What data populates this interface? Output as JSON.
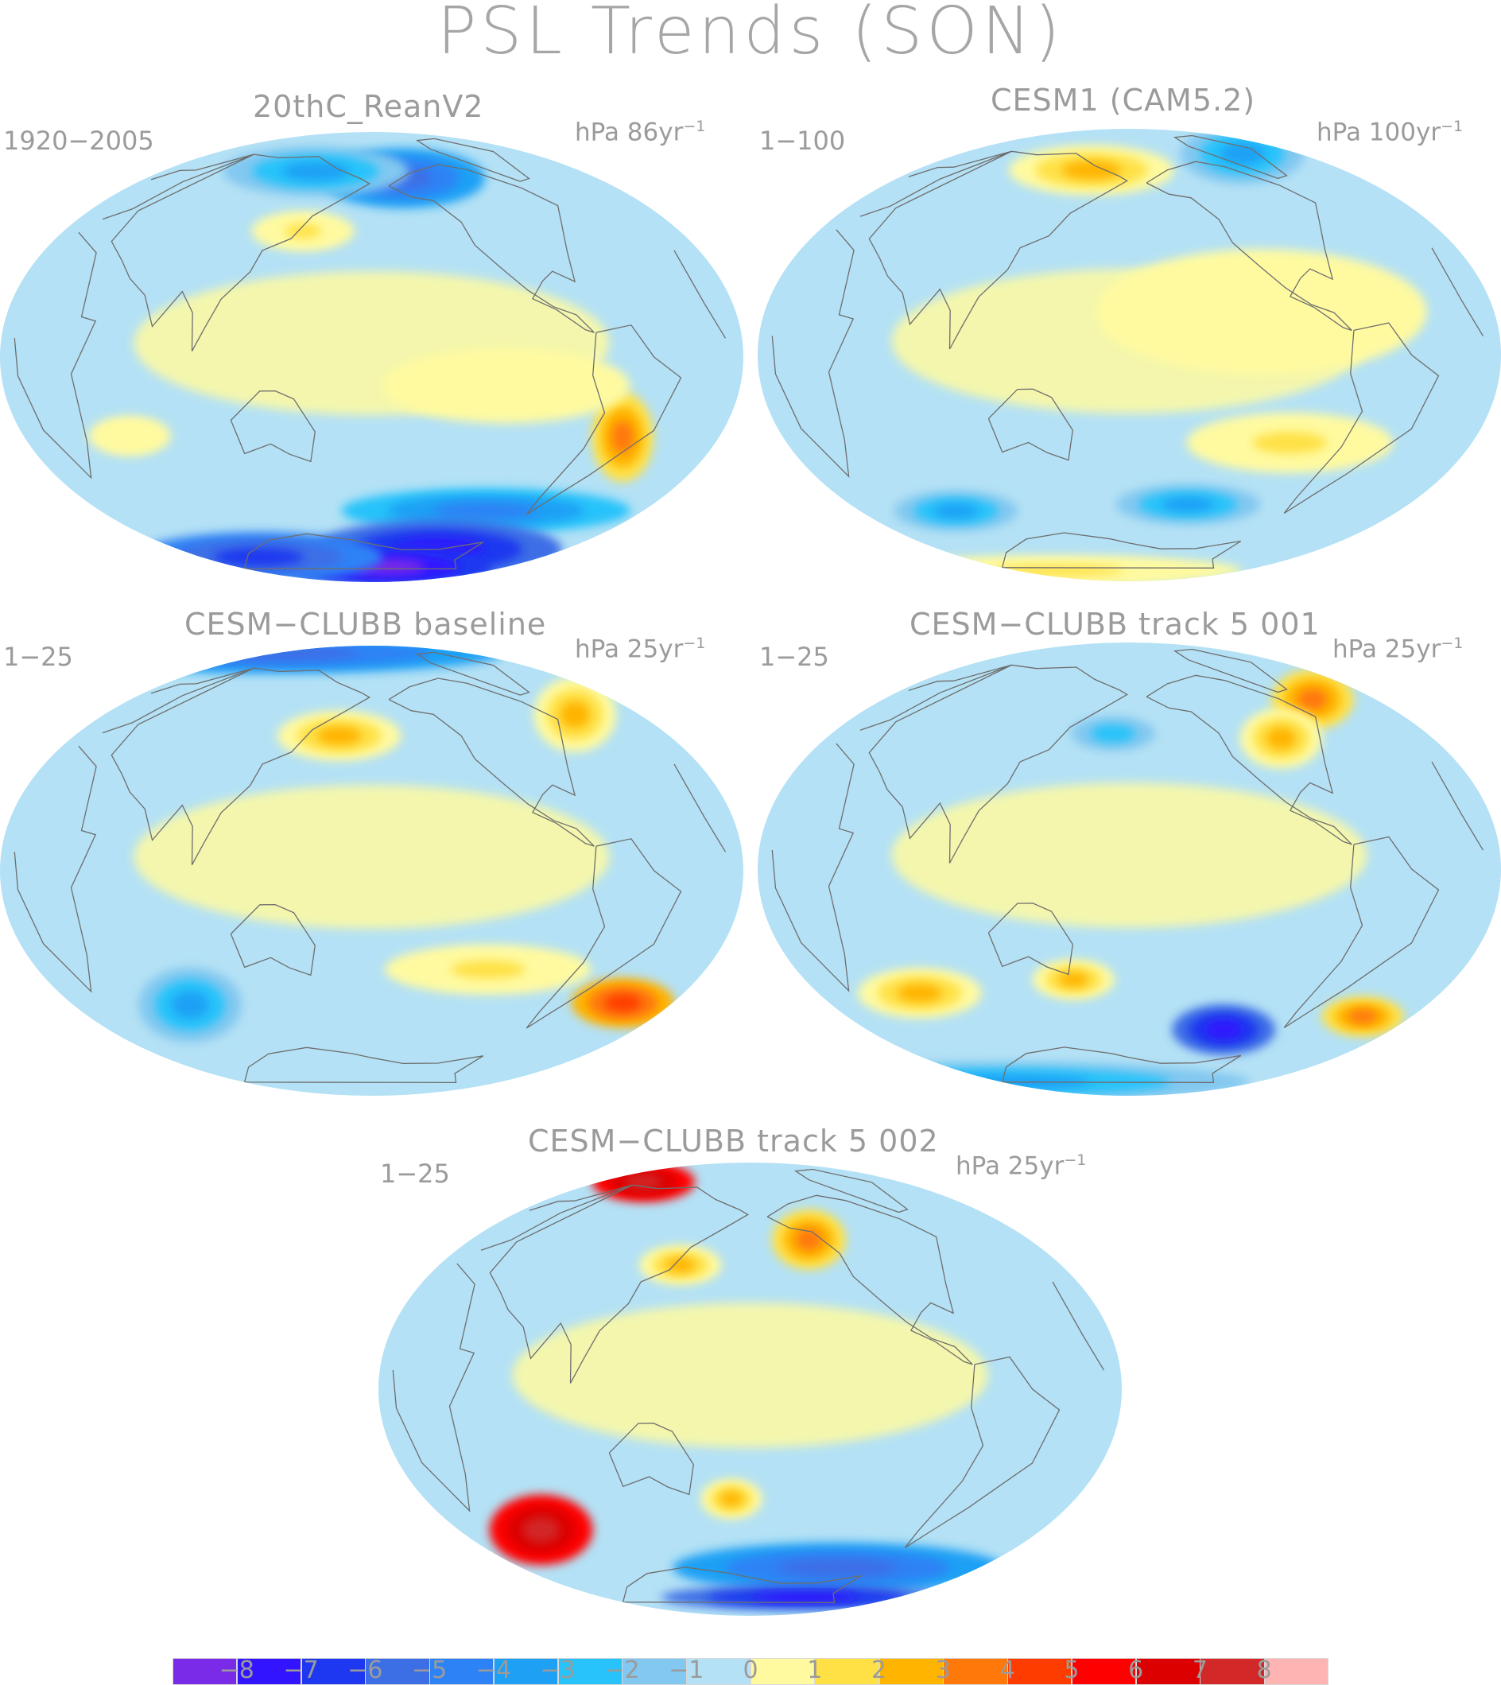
{
  "figure": {
    "title": "PSL Trends (SON)"
  },
  "colors": {
    "levels": [
      "#7a2be8",
      "#3214ff",
      "#1e37f0",
      "#3c6ee6",
      "#2d82f5",
      "#1ea0f5",
      "#28c3fa",
      "#82c8f0",
      "#b4e1f5",
      "#fffaa0",
      "#ffe146",
      "#ffb400",
      "#ff780a",
      "#ff3c00",
      "#ff0000",
      "#dc0000",
      "#d22828",
      "#ffb4b4"
    ],
    "coast": "#6e6e6e",
    "ocean_fill": "#b4e1f5"
  },
  "colorbar": {
    "ticks": [
      "−8",
      "−7",
      "−6",
      "−5",
      "−4",
      "−3",
      "−2",
      "−1",
      "0",
      "1",
      "2",
      "3",
      "4",
      "5",
      "6",
      "7",
      "8"
    ]
  },
  "panels": [
    {
      "title": "20thC_ReanV2",
      "period": "1920−2005",
      "units": "hPa 86yr",
      "units_exp": "−1",
      "blobs": [
        {
          "lon": -150,
          "lat": 68,
          "rx": 40,
          "ry": 12,
          "level": 3
        },
        {
          "lon": 120,
          "lat": 70,
          "rx": 45,
          "ry": 10,
          "level": 5
        },
        {
          "lon": 140,
          "lat": 46,
          "rx": 25,
          "ry": 8,
          "level": 10
        },
        {
          "lon": -55,
          "lat": -25,
          "rx": 15,
          "ry": 18,
          "level": 12
        },
        {
          "lon": -120,
          "lat": -10,
          "rx": 60,
          "ry": 15,
          "level": 9
        },
        {
          "lon": 60,
          "lat": -25,
          "rx": 20,
          "ry": 8,
          "level": 9
        },
        {
          "lon": -100,
          "lat": -55,
          "rx": 70,
          "ry": 9,
          "level": 4
        },
        {
          "lon": -100,
          "lat": -72,
          "rx": 60,
          "ry": 12,
          "level": 1
        },
        {
          "lon": -140,
          "lat": -82,
          "rx": 50,
          "ry": 8,
          "level": 0
        },
        {
          "lon": 40,
          "lat": -70,
          "rx": 60,
          "ry": 10,
          "level": 2
        }
      ]
    },
    {
      "title": "CESM1 (CAM5.2)",
      "period": "1−100",
      "units": "hPa 100yr",
      "units_exp": "−1",
      "blobs": [
        {
          "lon": 140,
          "lat": 70,
          "rx": 40,
          "ry": 10,
          "level": 11
        },
        {
          "lon": -40,
          "lat": 70,
          "rx": 30,
          "ry": 12,
          "level": 5
        },
        {
          "lon": -120,
          "lat": 15,
          "rx": 80,
          "ry": 25,
          "level": 9
        },
        {
          "lon": -100,
          "lat": -30,
          "rx": 50,
          "ry": 12,
          "level": 10
        },
        {
          "lon": 60,
          "lat": -52,
          "rx": 30,
          "ry": 8,
          "level": 5
        },
        {
          "lon": -140,
          "lat": -55,
          "rx": 35,
          "ry": 8,
          "level": 5
        },
        {
          "lon": 30,
          "lat": -78,
          "rx": 90,
          "ry": 6,
          "level": 10
        }
      ]
    },
    {
      "title": "CESM−CLUBB baseline",
      "period": "1−25",
      "units": "hPa 25yr",
      "units_exp": "−1",
      "blobs": [
        {
          "lon": 0,
          "lat": 75,
          "rx": 110,
          "ry": 8,
          "level": 3
        },
        {
          "lon": 160,
          "lat": 50,
          "rx": 30,
          "ry": 10,
          "level": 11
        },
        {
          "lon": -40,
          "lat": 50,
          "rx": 20,
          "ry": 15,
          "level": 11
        },
        {
          "lon": -30,
          "lat": -40,
          "rx": 25,
          "ry": 10,
          "level": 13
        },
        {
          "lon": -120,
          "lat": -35,
          "rx": 50,
          "ry": 10,
          "level": 10
        },
        {
          "lon": 70,
          "lat": -45,
          "rx": 25,
          "ry": 15,
          "level": 5
        }
      ]
    },
    {
      "title": "CESM−CLUBB track 5 001",
      "period": "1−25",
      "units": "hPa 25yr",
      "units_exp": "−1",
      "blobs": [
        {
          "lon": -40,
          "lat": 55,
          "rx": 20,
          "ry": 12,
          "level": 12
        },
        {
          "lon": -90,
          "lat": 45,
          "rx": 20,
          "ry": 12,
          "level": 11
        },
        {
          "lon": 170,
          "lat": 50,
          "rx": 30,
          "ry": 10,
          "level": 6
        },
        {
          "lon": -110,
          "lat": -58,
          "rx": 25,
          "ry": 10,
          "level": 1
        },
        {
          "lon": 60,
          "lat": -40,
          "rx": 30,
          "ry": 10,
          "level": 11
        },
        {
          "lon": 150,
          "lat": -40,
          "rx": 20,
          "ry": 8,
          "level": 11
        },
        {
          "lon": -30,
          "lat": -45,
          "rx": 20,
          "ry": 8,
          "level": 12
        },
        {
          "lon": 0,
          "lat": -70,
          "rx": 120,
          "ry": 8,
          "level": 5
        }
      ]
    },
    {
      "title": "CESM−CLUBB track 5 002",
      "period": "1−25",
      "units": "hPa 25yr",
      "units_exp": "−1",
      "blobs": [
        {
          "lon": 30,
          "lat": 72,
          "rx": 25,
          "ry": 8,
          "level": 16
        },
        {
          "lon": -140,
          "lat": 55,
          "rx": 18,
          "ry": 12,
          "level": 12
        },
        {
          "lon": 140,
          "lat": 45,
          "rx": 20,
          "ry": 8,
          "level": 11
        },
        {
          "lon": 50,
          "lat": -45,
          "rx": 25,
          "ry": 14,
          "level": 16
        },
        {
          "lon": 170,
          "lat": -40,
          "rx": 15,
          "ry": 8,
          "level": 11
        },
        {
          "lon": -100,
          "lat": -65,
          "rx": 80,
          "ry": 10,
          "level": 3
        },
        {
          "lon": -80,
          "lat": -78,
          "rx": 70,
          "ry": 5,
          "level": 1
        }
      ]
    }
  ]
}
